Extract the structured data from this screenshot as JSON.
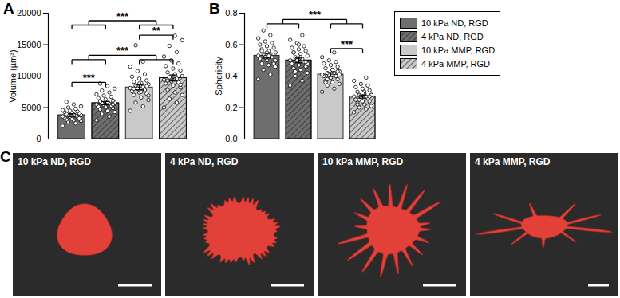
{
  "chart_data": [
    {
      "type": "bar",
      "title": "A",
      "ylabel": "Volume (µm³)",
      "categories": [
        "10 kPa ND, RGD",
        "4 kPa ND, RGD",
        "10 kPa MMP, RGD",
        "4 kPa MMP, RGD"
      ],
      "colors": [
        "#6e6e6e",
        "#6e6e6e",
        "#c9c9c9",
        "#c9c9c9"
      ],
      "values": [
        3800,
        5700,
        8200,
        9700
      ],
      "errors": [
        220,
        260,
        380,
        480
      ],
      "points": [
        [
          2100,
          2500,
          2700,
          2900,
          3000,
          3100,
          3200,
          3300,
          3400,
          3500,
          3600,
          3600,
          3700,
          3800,
          3800,
          3900,
          4000,
          4100,
          4200,
          4300,
          4400,
          4500,
          4600,
          4800,
          5000,
          5200,
          5500,
          5900,
          3300,
          3700
        ],
        [
          3000,
          3600,
          4000,
          4300,
          4500,
          4700,
          4900,
          5000,
          5200,
          5300,
          5400,
          5500,
          5600,
          5700,
          5800,
          5900,
          6000,
          6100,
          6300,
          6500,
          6700,
          6900,
          7100,
          7400,
          7700,
          8000,
          8400,
          8800,
          5500,
          5100
        ],
        [
          4500,
          5200,
          5800,
          6200,
          6600,
          7000,
          7200,
          7400,
          7600,
          7800,
          8000,
          8100,
          8300,
          8500,
          8700,
          8900,
          9100,
          9300,
          9600,
          9900,
          10300,
          10800,
          11500,
          12300,
          14900,
          6900,
          7500,
          8000,
          8400,
          8800
        ],
        [
          5000,
          5800,
          6400,
          7000,
          7400,
          7800,
          8200,
          8500,
          8800,
          9000,
          9200,
          9400,
          9600,
          9800,
          10000,
          10300,
          10600,
          10900,
          11200,
          11600,
          12000,
          12500,
          13100,
          13800,
          14800,
          15700,
          16400,
          9300,
          8600,
          9900
        ]
      ],
      "ylim": [
        0,
        20000
      ],
      "yticks": [
        0,
        5000,
        10000,
        15000,
        20000
      ],
      "tick_labels": "y",
      "brackets": [
        {
          "left": [
            0,
            1
          ],
          "right": [
            2,
            3
          ],
          "y": 18800,
          "label": "***"
        },
        {
          "left": [
            0,
            1
          ],
          "right": [
            2,
            3
          ],
          "y": 13300,
          "label": "***"
        },
        {
          "left": [
            0
          ],
          "right": [
            1
          ],
          "y": 9000,
          "label": "***"
        },
        {
          "left": [
            2
          ],
          "right": [
            3
          ],
          "y": 16500,
          "label": "**"
        }
      ]
    },
    {
      "type": "bar",
      "title": "B",
      "ylabel": "Sphericity",
      "categories": [
        "10 kPa ND, RGD",
        "4 kPa ND, RGD",
        "10 kPa MMP, RGD",
        "4 kPa MMP, RGD"
      ],
      "colors": [
        "#6e6e6e",
        "#6e6e6e",
        "#c9c9c9",
        "#c9c9c9"
      ],
      "values": [
        0.53,
        0.5,
        0.41,
        0.27
      ],
      "errors": [
        0.015,
        0.015,
        0.012,
        0.01
      ],
      "points": [
        [
          0.38,
          0.41,
          0.44,
          0.46,
          0.47,
          0.48,
          0.49,
          0.5,
          0.51,
          0.52,
          0.52,
          0.53,
          0.54,
          0.54,
          0.55,
          0.56,
          0.57,
          0.58,
          0.59,
          0.6,
          0.61,
          0.62,
          0.64,
          0.66,
          0.69,
          0.5,
          0.53,
          0.56,
          0.48,
          0.55
        ],
        [
          0.34,
          0.37,
          0.4,
          0.42,
          0.44,
          0.45,
          0.46,
          0.47,
          0.48,
          0.49,
          0.5,
          0.5,
          0.51,
          0.52,
          0.53,
          0.54,
          0.55,
          0.56,
          0.57,
          0.58,
          0.59,
          0.61,
          0.63,
          0.66,
          0.43,
          0.48,
          0.52,
          0.55,
          0.49,
          0.6
        ],
        [
          0.3,
          0.32,
          0.34,
          0.35,
          0.36,
          0.37,
          0.38,
          0.39,
          0.4,
          0.4,
          0.41,
          0.41,
          0.42,
          0.42,
          0.43,
          0.44,
          0.45,
          0.46,
          0.47,
          0.48,
          0.49,
          0.5,
          0.52,
          0.55,
          0.38,
          0.41,
          0.44,
          0.36,
          0.43,
          0.39
        ],
        [
          0.17,
          0.19,
          0.2,
          0.21,
          0.22,
          0.23,
          0.24,
          0.24,
          0.25,
          0.26,
          0.26,
          0.27,
          0.27,
          0.28,
          0.28,
          0.29,
          0.3,
          0.31,
          0.32,
          0.33,
          0.34,
          0.35,
          0.37,
          0.39,
          0.25,
          0.28,
          0.3,
          0.22,
          0.27,
          0.29
        ]
      ],
      "ylim": [
        0,
        0.8
      ],
      "yticks": [
        {
          "value": 0,
          "label": "0.0"
        },
        0.2,
        0.4,
        0.6,
        0.8
      ],
      "tick_labels": "y",
      "legend": "right",
      "brackets": [
        {
          "left": [
            0,
            1
          ],
          "right": [
            2,
            3
          ],
          "y": 0.76,
          "label": "***"
        },
        {
          "left": [
            2
          ],
          "right": [
            3
          ],
          "y": 0.575,
          "label": "***"
        }
      ]
    }
  ],
  "panel_c": {
    "title": "C",
    "labels": [
      "10 kPa ND, RGD",
      "4 kPa ND, RGD",
      "10 kPa MMP, RGD",
      "4 kPa MMP, RGD"
    ]
  }
}
